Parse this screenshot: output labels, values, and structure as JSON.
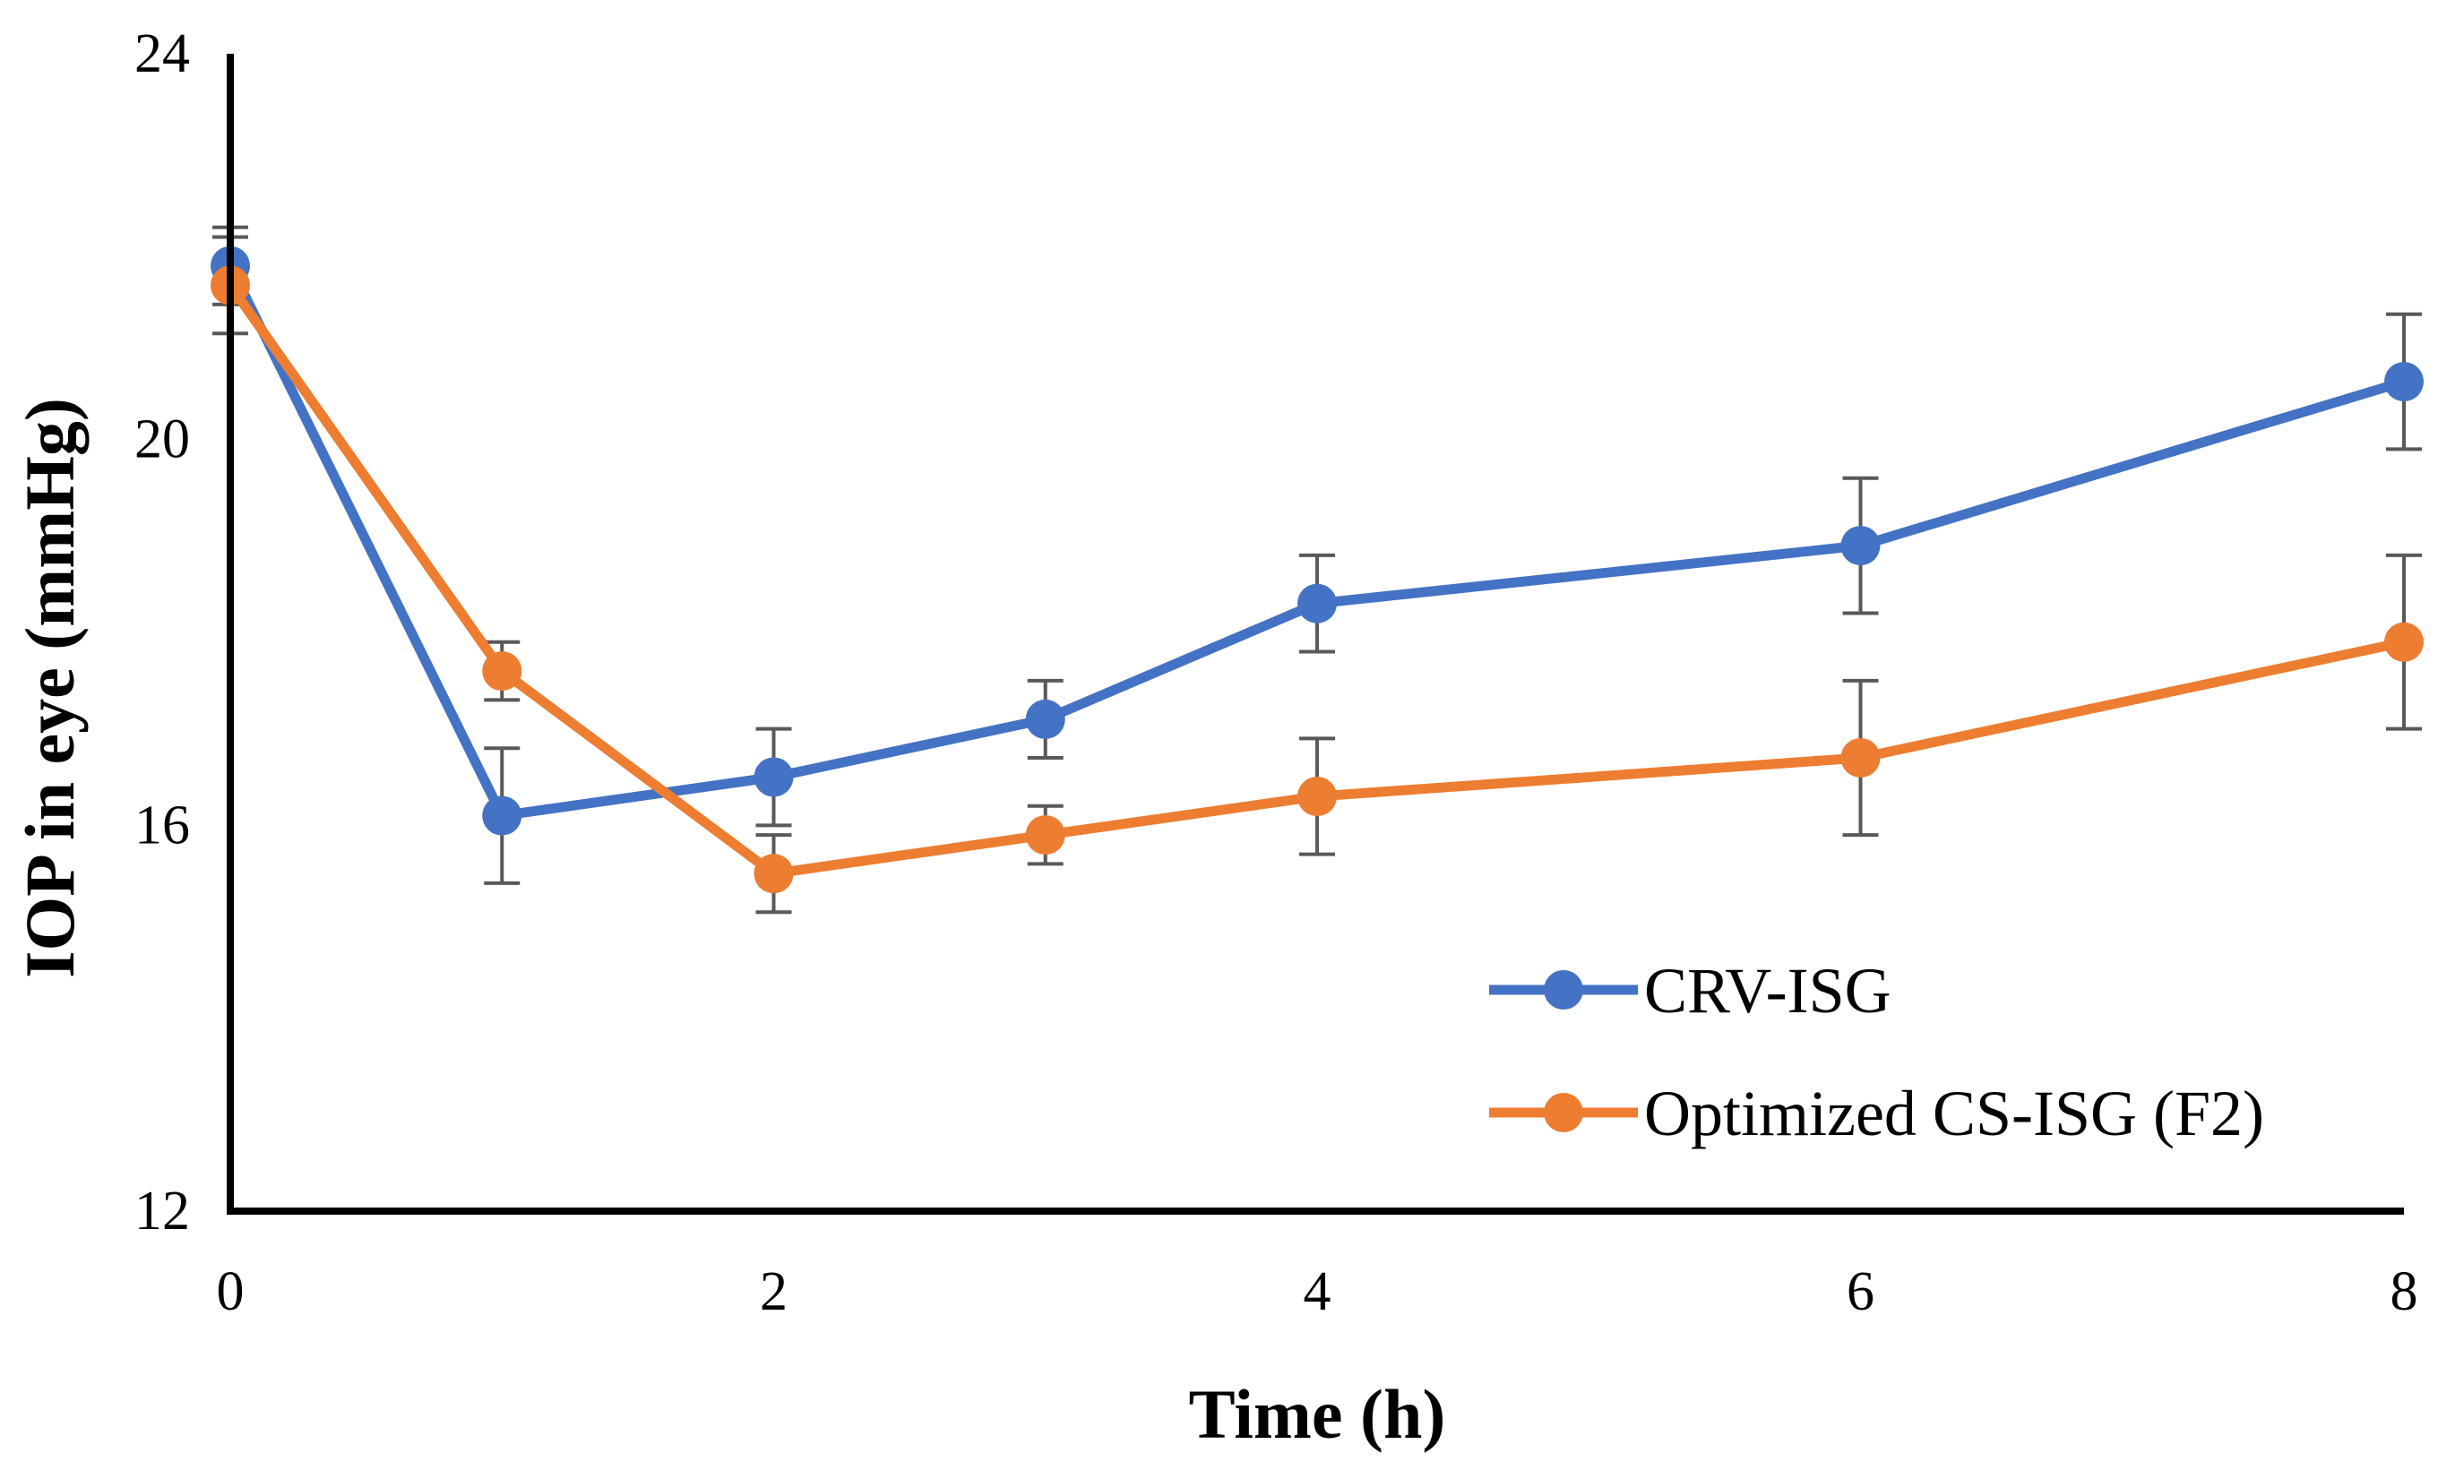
{
  "chart_data": {
    "type": "line",
    "xlabel": "Time (h)",
    "ylabel": "IOP in eye (mmHg)",
    "xlim": [
      0,
      8
    ],
    "ylim": [
      12,
      24
    ],
    "x_ticks": [
      0,
      2,
      4,
      6,
      8
    ],
    "y_ticks": [
      12,
      16,
      20,
      24
    ],
    "grid": false,
    "legend_position": "bottom-right",
    "series": [
      {
        "name": "CRV-ISG",
        "color": "#4472C4",
        "x": [
          0,
          1,
          2,
          3,
          4,
          6,
          8
        ],
        "y": [
          21.8,
          16.1,
          16.5,
          17.1,
          18.3,
          18.9,
          20.6
        ],
        "error": [
          0.4,
          0.7,
          0.5,
          0.4,
          0.5,
          0.7,
          0.7
        ]
      },
      {
        "name": "Optimized CS-ISG (F2)",
        "color": "#ED7D31",
        "x": [
          0,
          1,
          2,
          3,
          4,
          6,
          8
        ],
        "y": [
          21.6,
          17.6,
          15.5,
          15.9,
          16.3,
          16.7,
          17.9
        ],
        "error": [
          0.5,
          0.3,
          0.4,
          0.3,
          0.6,
          0.8,
          0.9
        ]
      }
    ]
  }
}
